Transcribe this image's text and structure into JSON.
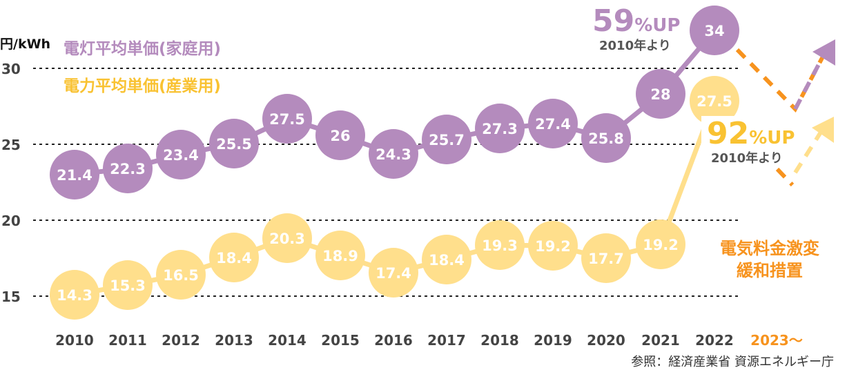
{
  "chart_data": {
    "type": "line",
    "ylabel": "円/kWh",
    "ylim": [
      15,
      30
    ],
    "yticks": [
      "15",
      "20",
      "25",
      "30"
    ],
    "grid": true,
    "categories": [
      "2010",
      "2011",
      "2012",
      "2013",
      "2014",
      "2015",
      "2016",
      "2017",
      "2018",
      "2019",
      "2020",
      "2021",
      "2022"
    ],
    "extra_category": "2023～",
    "series": [
      {
        "name": "電灯平均単価(家庭用)",
        "color": "#b48bbd",
        "values": [
          21.4,
          22.3,
          23.4,
          25.5,
          27.5,
          26,
          24.3,
          25.7,
          27.3,
          27.4,
          25.8,
          28,
          34
        ]
      },
      {
        "name": "電力平均単価(産業用)",
        "color": "#ffdf8c",
        "values": [
          14.3,
          15.3,
          16.5,
          18.4,
          20.3,
          18.9,
          17.4,
          18.4,
          19.3,
          19.2,
          17.7,
          19.2,
          27.5
        ]
      }
    ],
    "annotations": {
      "home_up": "59",
      "home_up_suffix": "%UP",
      "home_since": "2010年より",
      "ind_up": "92",
      "ind_up_suffix": "%UP",
      "ind_since": "2010年より",
      "relief_line1": "電気料金激変",
      "relief_line2": "緩和措置",
      "source": "参照：経済産業省 資源エネルギー庁"
    },
    "colors": {
      "home": "#b48bbd",
      "industry": "#ffdf8c",
      "industry_text": "#f9c232",
      "accent": "#f7931e",
      "text": "#444444"
    }
  }
}
